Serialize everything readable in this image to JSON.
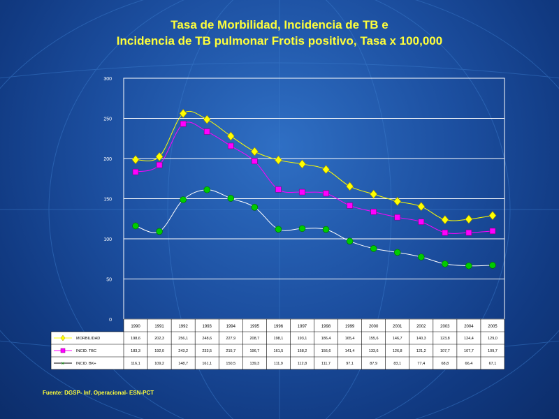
{
  "title_line1": "Tasa de Morbilidad, Incidencia de TB e",
  "title_line2": "Incidencia de TB pulmonar Frotis positivo, Tasa x 100,000",
  "source": "Fuente: DGSP- Inf. Operacional- ESN-PCT",
  "chart_data": {
    "type": "line",
    "title": "Tasa de Morbilidad, Incidencia de TB e Incidencia de TB pulmonar Frotis positivo, Tasa x 100,000",
    "xlabel": "",
    "ylabel": "",
    "ylim": [
      0,
      300
    ],
    "yticks": [
      0,
      50,
      100,
      150,
      200,
      250,
      300
    ],
    "grid": true,
    "legend": "data table below chart",
    "categories": [
      "1990",
      "1991",
      "1992",
      "1993",
      "1994",
      "1995",
      "1996",
      "1997",
      "1998",
      "1999",
      "2000",
      "2001",
      "2002",
      "2003",
      "2004",
      "2005"
    ],
    "series": [
      {
        "name": "MORBILIDAD",
        "color": "#ffff00",
        "marker": "diamond",
        "values": [
          198.6,
          202.3,
          256.1,
          248.6,
          227.9,
          208.7,
          198.1,
          193.1,
          186.4,
          165.4,
          155.6,
          146.7,
          140.3,
          123.8,
          124.4,
          129.0
        ],
        "labels": [
          "198,6",
          "202,3",
          "256,1",
          "248,6",
          "227,9",
          "208,7",
          "198,1",
          "193,1",
          "186,4",
          "165,4",
          "155,6",
          "146,7",
          "140,3",
          "123,8",
          "124,4",
          "129,0"
        ]
      },
      {
        "name": "INCID. TBC",
        "color": "#ff00ff",
        "marker": "square",
        "values": [
          183.3,
          192.0,
          243.2,
          233.5,
          215.7,
          196.7,
          161.5,
          158.2,
          156.6,
          141.4,
          133.6,
          126.8,
          121.2,
          107.7,
          107.7,
          109.7
        ],
        "labels": [
          "183,3",
          "192,0",
          "243,2",
          "233,5",
          "215,7",
          "196,7",
          "161,5",
          "158,2",
          "156,6",
          "141,4",
          "133,6",
          "126,8",
          "121,2",
          "107,7",
          "107,7",
          "109,7"
        ]
      },
      {
        "name": "INCID. BK+",
        "color": "#00cc00",
        "marker": "circle",
        "values": [
          116.1,
          109.2,
          148.7,
          161.1,
          150.5,
          139.3,
          111.9,
          112.8,
          111.7,
          97.1,
          87.9,
          83.1,
          77.4,
          68.8,
          66.4,
          67.1
        ],
        "labels": [
          "116,1",
          "109,2",
          "148,7",
          "161,1",
          "150,5",
          "139,3",
          "111,9",
          "112,8",
          "111,7",
          "97,1",
          "87,9",
          "83,1",
          "77,4",
          "68,8",
          "66,4",
          "67,1"
        ]
      }
    ]
  }
}
